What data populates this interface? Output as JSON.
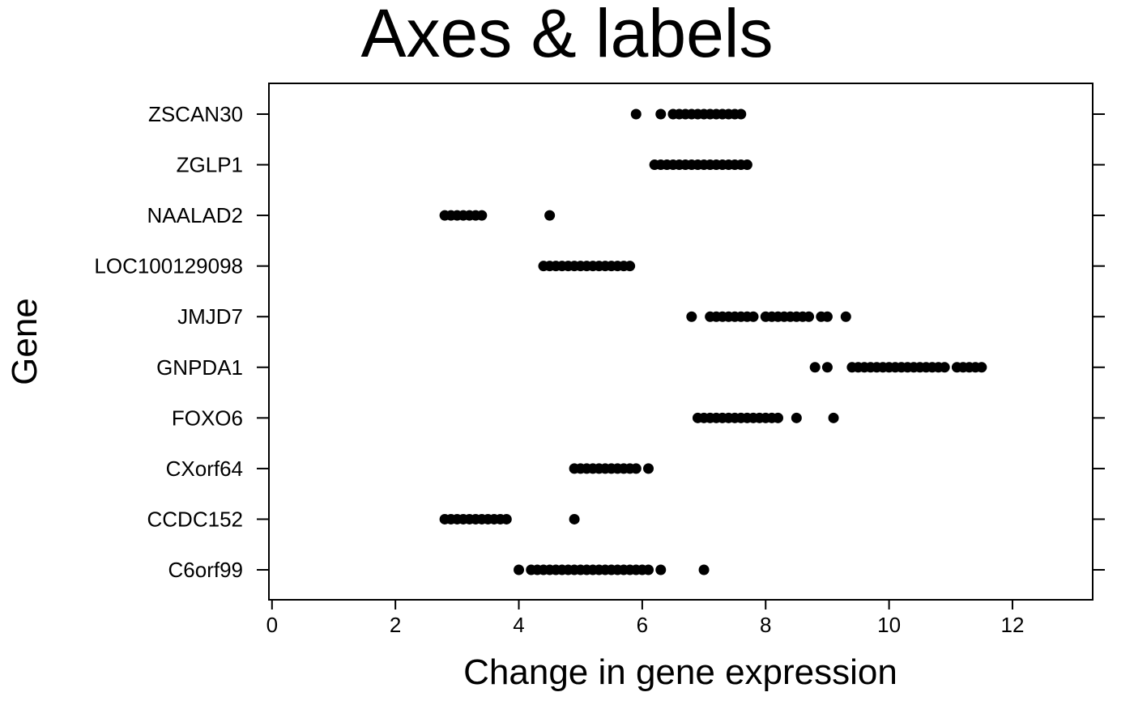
{
  "chart_data": {
    "type": "scatter",
    "title": "Axes & labels",
    "xlabel": "Change in gene expression",
    "ylabel": "Gene",
    "xlim": [
      -0.05,
      13.3
    ],
    "x_ticks": [
      0,
      2,
      4,
      6,
      8,
      10,
      12
    ],
    "grid": false,
    "legend": "none",
    "marker_color": "#000000",
    "categories": [
      "ZSCAN30",
      "ZGLP1",
      "NAALAD2",
      "LOC100129098",
      "JMJD7",
      "GNPDA1",
      "FOXO6",
      "CXorf64",
      "CCDC152",
      "C6orf99"
    ],
    "points": [
      {
        "gene": "ZSCAN30",
        "x": [
          5.9,
          6.3,
          6.5,
          6.6,
          6.7,
          6.8,
          6.9,
          7.0,
          7.1,
          7.2,
          7.3,
          7.4,
          7.5,
          7.6
        ]
      },
      {
        "gene": "ZGLP1",
        "x": [
          6.2,
          6.3,
          6.4,
          6.5,
          6.6,
          6.7,
          6.8,
          6.9,
          7.0,
          7.1,
          7.2,
          7.3,
          7.4,
          7.5,
          7.6,
          7.7
        ]
      },
      {
        "gene": "NAALAD2",
        "x": [
          2.8,
          2.9,
          3.0,
          3.1,
          3.2,
          3.3,
          3.4,
          4.5
        ]
      },
      {
        "gene": "LOC100129098",
        "x": [
          4.4,
          4.5,
          4.6,
          4.7,
          4.8,
          4.9,
          5.0,
          5.1,
          5.2,
          5.3,
          5.4,
          5.5,
          5.6,
          5.7,
          5.8
        ]
      },
      {
        "gene": "JMJD7",
        "x": [
          6.8,
          7.1,
          7.2,
          7.3,
          7.4,
          7.5,
          7.6,
          7.7,
          7.8,
          8.0,
          8.1,
          8.2,
          8.3,
          8.4,
          8.5,
          8.6,
          8.7,
          8.9,
          9.0,
          9.3
        ]
      },
      {
        "gene": "GNPDA1",
        "x": [
          8.8,
          9.0,
          9.4,
          9.5,
          9.6,
          9.7,
          9.8,
          9.9,
          10.0,
          10.1,
          10.2,
          10.3,
          10.4,
          10.5,
          10.6,
          10.7,
          10.8,
          10.9,
          11.1,
          11.2,
          11.3,
          11.4,
          11.5
        ]
      },
      {
        "gene": "FOXO6",
        "x": [
          6.9,
          7.0,
          7.1,
          7.2,
          7.3,
          7.4,
          7.5,
          7.6,
          7.7,
          7.8,
          7.9,
          8.0,
          8.1,
          8.2,
          8.5,
          9.1
        ]
      },
      {
        "gene": "CXorf64",
        "x": [
          4.9,
          5.0,
          5.1,
          5.2,
          5.3,
          5.4,
          5.5,
          5.6,
          5.7,
          5.8,
          5.9,
          6.1
        ]
      },
      {
        "gene": "CCDC152",
        "x": [
          2.8,
          2.9,
          3.0,
          3.1,
          3.2,
          3.3,
          3.4,
          3.5,
          3.6,
          3.7,
          3.8,
          4.9
        ]
      },
      {
        "gene": "C6orf99",
        "x": [
          4.0,
          4.2,
          4.3,
          4.4,
          4.5,
          4.6,
          4.7,
          4.8,
          4.9,
          5.0,
          5.1,
          5.2,
          5.3,
          5.4,
          5.5,
          5.6,
          5.7,
          5.8,
          5.9,
          6.0,
          6.1,
          6.3,
          7.0
        ]
      }
    ]
  }
}
